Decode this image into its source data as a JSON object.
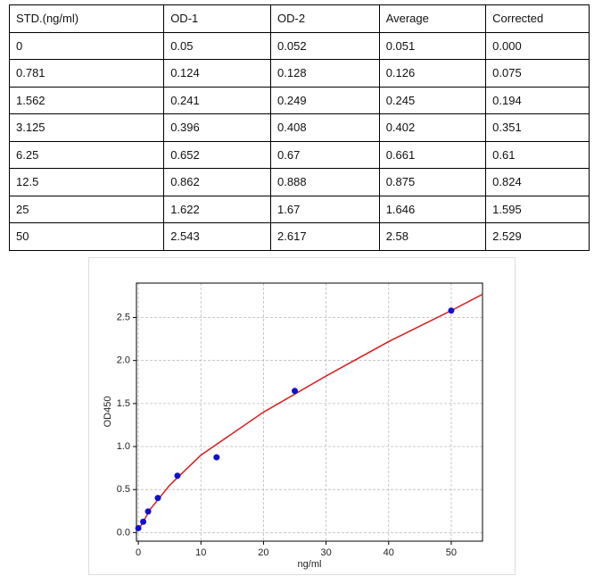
{
  "table": {
    "header": [
      "STD.(ng/ml)",
      "OD-1",
      "OD-2",
      "Average",
      "Corrected"
    ],
    "rows": [
      [
        "0",
        "0.05",
        "0.052",
        "0.051",
        "0.000"
      ],
      [
        "0.781",
        "0.124",
        "0.128",
        "0.126",
        "0.075"
      ],
      [
        "1.562",
        "0.241",
        "0.249",
        "0.245",
        "0.194"
      ],
      [
        "3.125",
        "0.396",
        "0.408",
        "0.402",
        "0.351"
      ],
      [
        "6.25",
        "0.652",
        "0.67",
        "0.661",
        "0.61"
      ],
      [
        "12.5",
        "0.862",
        "0.888",
        "0.875",
        "0.824"
      ],
      [
        "25",
        "1.622",
        "1.67",
        "1.646",
        "1.595"
      ],
      [
        "50",
        "2.543",
        "2.617",
        "2.58",
        "2.529"
      ]
    ]
  },
  "chart_data": {
    "type": "scatter",
    "x_label": "ng/ml",
    "y_label": "OD450",
    "points": {
      "x": [
        0,
        0.781,
        1.562,
        3.125,
        6.25,
        12.5,
        25,
        50
      ],
      "y": [
        0.051,
        0.126,
        0.245,
        0.402,
        0.661,
        0.875,
        1.646,
        2.58
      ],
      "color": "#1010d0"
    },
    "curve": {
      "x": [
        0,
        2,
        5,
        10,
        20,
        30,
        40,
        50,
        55
      ],
      "y": [
        0.03,
        0.28,
        0.55,
        0.9,
        1.4,
        1.82,
        2.22,
        2.58,
        2.77
      ],
      "color": "#d62728"
    },
    "xlim": [
      -0.3,
      55
    ],
    "ylim": [
      -0.1,
      2.9
    ],
    "xticks": [
      0,
      10,
      20,
      30,
      40,
      50
    ],
    "yticks": [
      {
        "value": 0,
        "label": "0.0"
      },
      0.5,
      {
        "value": 1,
        "label": "1.0"
      },
      1.5,
      {
        "value": 2,
        "label": "2.0"
      },
      2.5
    ],
    "grid": true
  }
}
